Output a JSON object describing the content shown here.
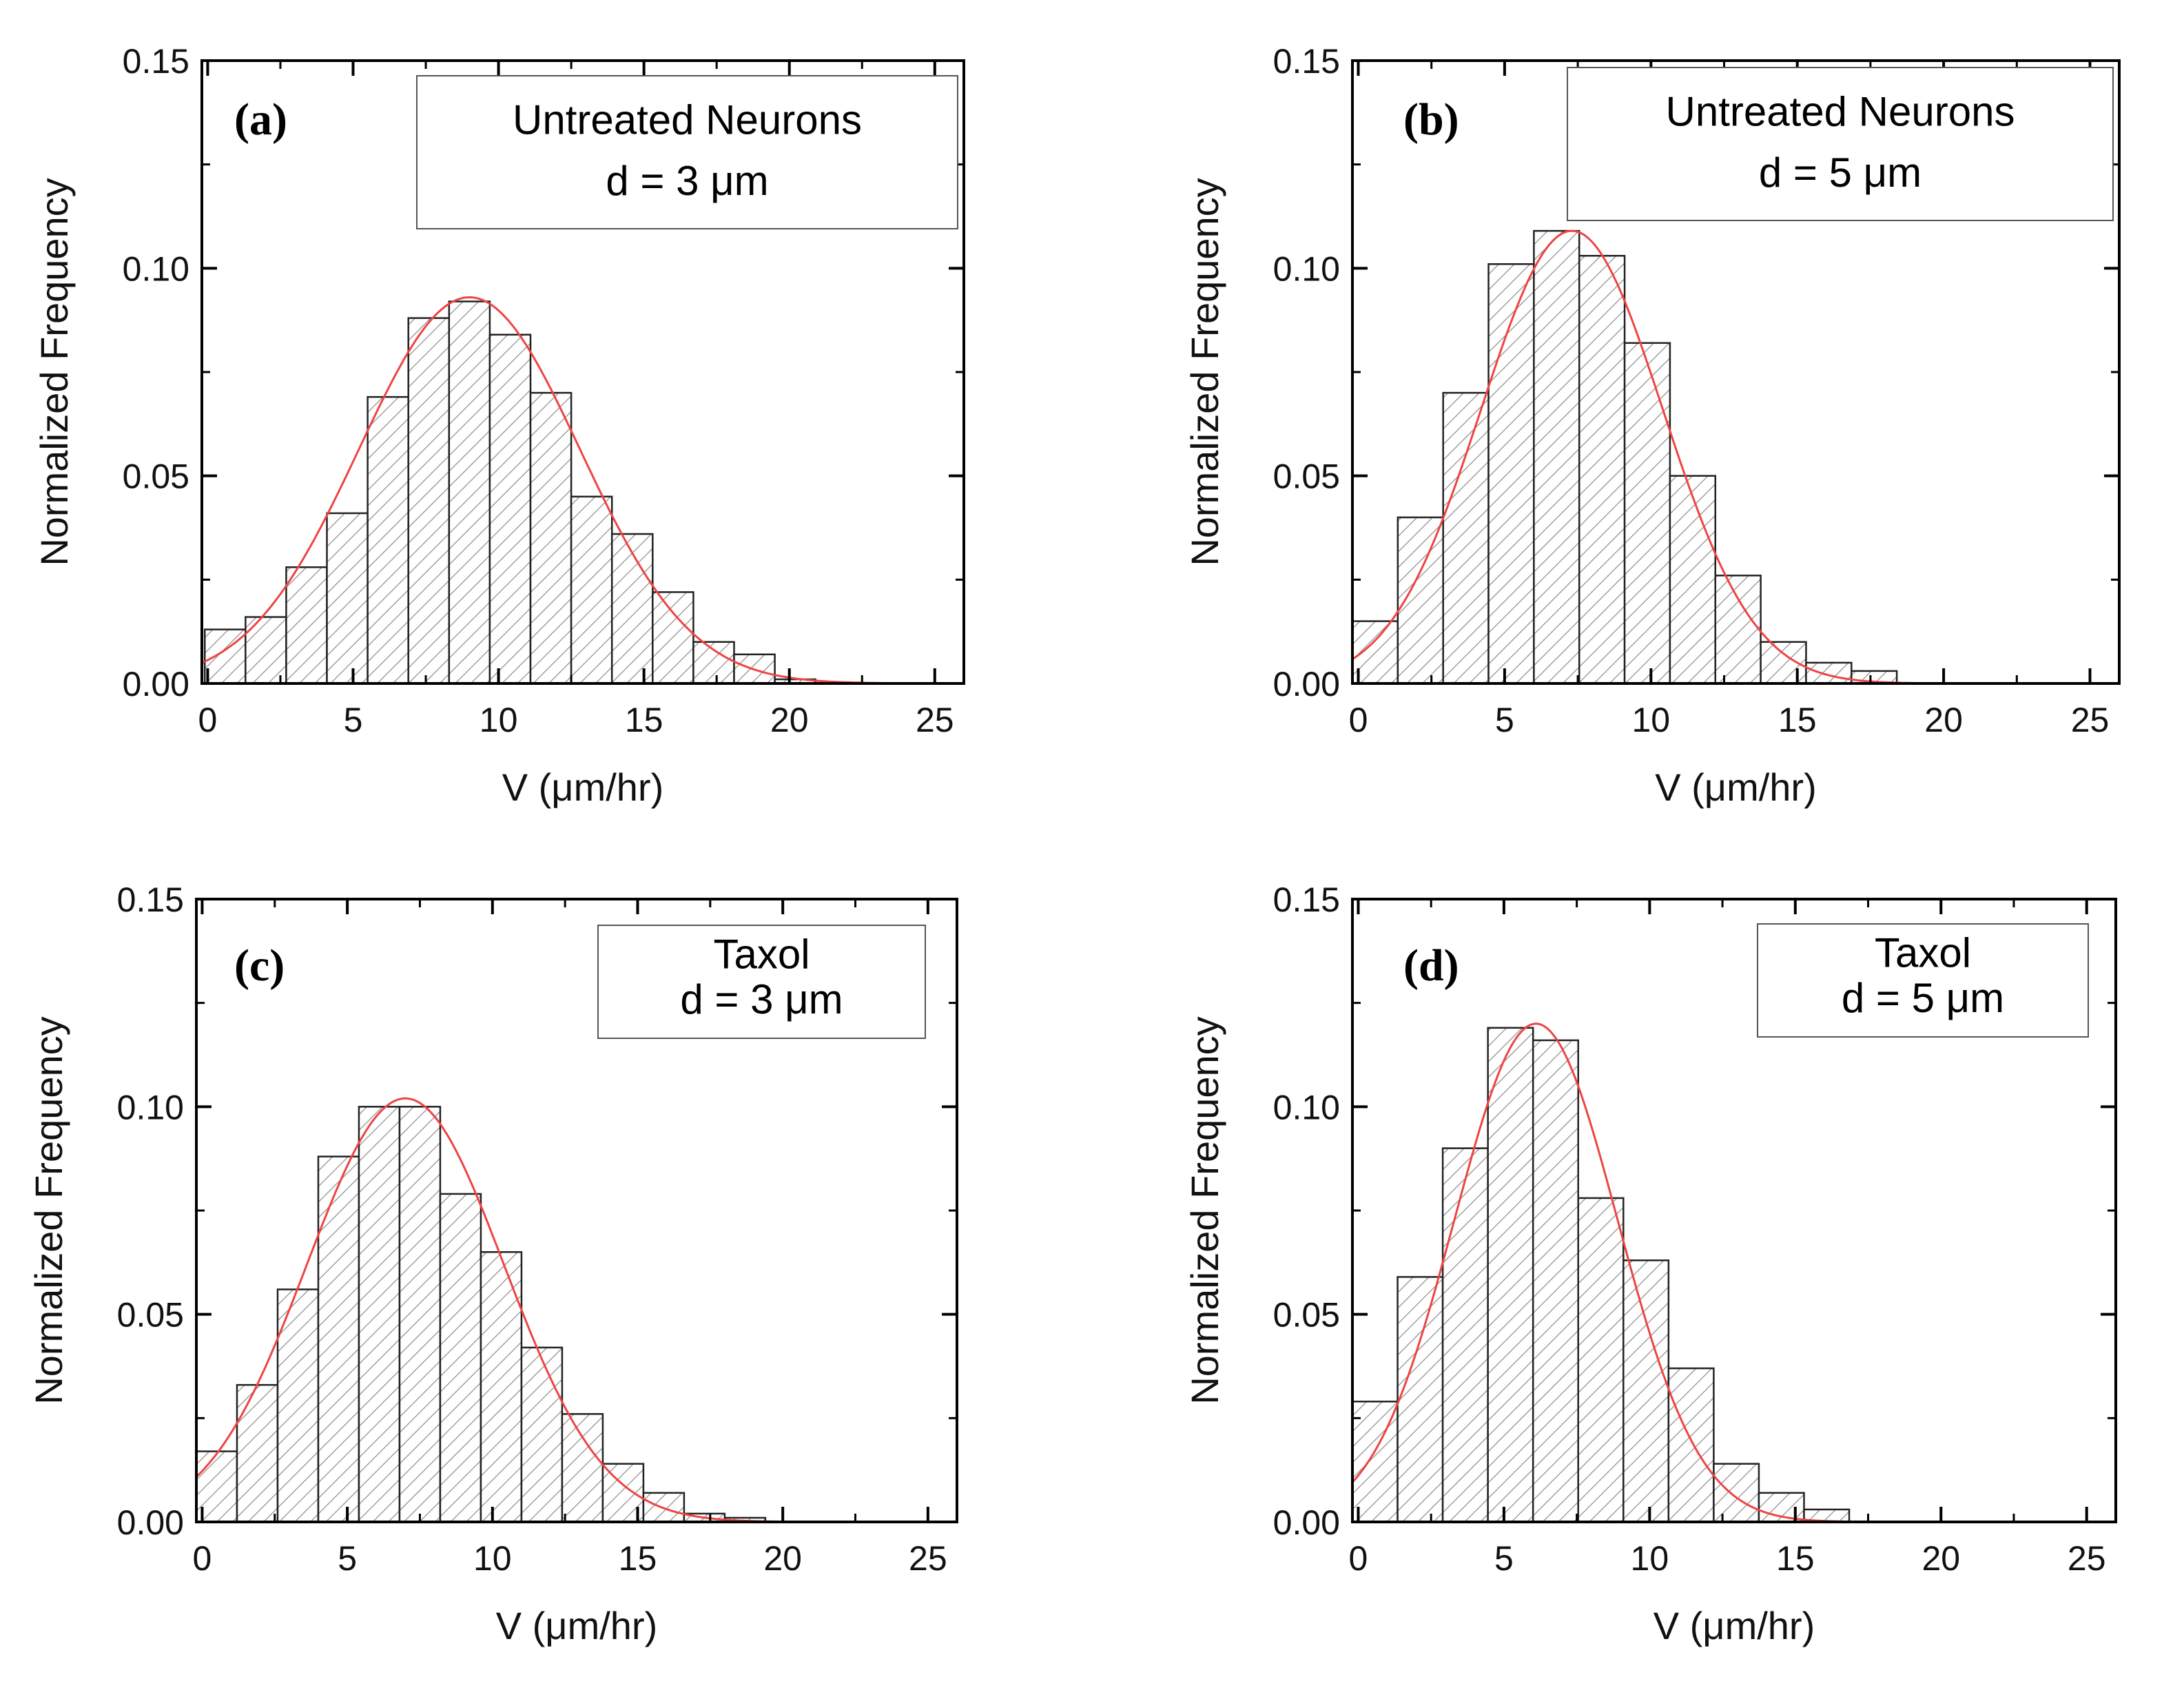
{
  "chart_data": [
    {
      "type": "bar",
      "id": "a",
      "panel_label": "(a)",
      "legend": {
        "line1": "Untreated Neurons",
        "line2": "d = 3 μm"
      },
      "xlabel": "V (μm/hr)",
      "ylabel": "Normalized Frequency",
      "xlim": [
        -0.2,
        26
      ],
      "ylim": [
        0,
        0.15
      ],
      "xticks": [
        0,
        5,
        10,
        15,
        20,
        25
      ],
      "xtick_labels": [
        "0",
        "5",
        "10",
        "15",
        "20",
        "25"
      ],
      "yticks": [
        0,
        0.05,
        0.1,
        0.15
      ],
      "ytick_labels": [
        "0.00",
        "0.05",
        "0.10",
        "0.15"
      ],
      "bin_start": -0.1,
      "bin_width": 1.4,
      "values": [
        0.013,
        0.016,
        0.028,
        0.041,
        0.069,
        0.088,
        0.092,
        0.084,
        0.07,
        0.045,
        0.036,
        0.022,
        0.01,
        0.007,
        0.001
      ],
      "fit": {
        "type": "gaussian",
        "amplitude": 0.093,
        "mean": 9.0,
        "sigma": 3.8,
        "color": "#ee4444"
      }
    },
    {
      "type": "bar",
      "id": "b",
      "panel_label": "(b)",
      "legend": {
        "line1": "Untreated Neurons",
        "line2": "d = 5 μm"
      },
      "xlabel": "V (μm/hr)",
      "ylabel": "Normalized Frequency",
      "xlim": [
        -0.2,
        26
      ],
      "ylim": [
        0,
        0.15
      ],
      "xticks": [
        0,
        5,
        10,
        15,
        20,
        25
      ],
      "xtick_labels": [
        "0",
        "5",
        "10",
        "15",
        "20",
        "25"
      ],
      "yticks": [
        0,
        0.05,
        0.1,
        0.15
      ],
      "ytick_labels": [
        "0.00",
        "0.05",
        "0.10",
        "0.15"
      ],
      "bin_start": -0.2,
      "bin_width": 1.55,
      "values": [
        0.015,
        0.04,
        0.07,
        0.101,
        0.109,
        0.103,
        0.082,
        0.05,
        0.026,
        0.01,
        0.005,
        0.003
      ],
      "fit": {
        "type": "gaussian",
        "amplitude": 0.109,
        "mean": 7.3,
        "sigma": 3.1,
        "color": "#ee4444"
      }
    },
    {
      "type": "bar",
      "id": "c",
      "panel_label": "(c)",
      "legend": {
        "line1": "Taxol",
        "line2": "d = 3 μm"
      },
      "xlabel": "V (μm/hr)",
      "ylabel": "Normalized Frequency",
      "xlim": [
        -0.2,
        26
      ],
      "ylim": [
        0,
        0.15
      ],
      "xticks": [
        0,
        5,
        10,
        15,
        20,
        25
      ],
      "xtick_labels": [
        "0",
        "5",
        "10",
        "15",
        "20",
        "25"
      ],
      "yticks": [
        0,
        0.05,
        0.1,
        0.15
      ],
      "ytick_labels": [
        "0.00",
        "0.05",
        "0.10",
        "0.15"
      ],
      "bin_start": -0.2,
      "bin_width": 1.4,
      "values": [
        0.017,
        0.033,
        0.056,
        0.088,
        0.1,
        0.1,
        0.079,
        0.065,
        0.042,
        0.026,
        0.014,
        0.007,
        0.002,
        0.001
      ],
      "fit": {
        "type": "gaussian",
        "amplitude": 0.102,
        "mean": 7.0,
        "sigma": 3.4,
        "color": "#ee4444"
      }
    },
    {
      "type": "bar",
      "id": "d",
      "panel_label": "(d)",
      "legend": {
        "line1": "Taxol",
        "line2": "d = 5 μm"
      },
      "xlabel": "V (μm/hr)",
      "ylabel": "Normalized Frequency",
      "xlim": [
        -0.2,
        26
      ],
      "ylim": [
        0,
        0.15
      ],
      "xticks": [
        0,
        5,
        10,
        15,
        20,
        25
      ],
      "xtick_labels": [
        "0",
        "5",
        "10",
        "15",
        "20",
        "25"
      ],
      "yticks": [
        0,
        0.05,
        0.1,
        0.15
      ],
      "ytick_labels": [
        "0.00",
        "0.05",
        "0.10",
        "0.15"
      ],
      "bin_start": -0.2,
      "bin_width": 1.55,
      "values": [
        0.029,
        0.059,
        0.09,
        0.119,
        0.116,
        0.078,
        0.063,
        0.037,
        0.014,
        0.007,
        0.003
      ],
      "fit": {
        "type": "gaussian",
        "amplitude": 0.12,
        "mean": 6.1,
        "sigma": 2.8,
        "color": "#ee4444"
      }
    }
  ]
}
